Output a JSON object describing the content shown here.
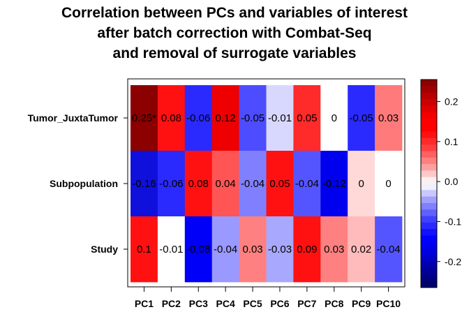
{
  "title_lines": [
    "Correlation between PCs and variables of interest",
    "after batch correction with Combat-Seq",
    "and removal of surrogate variables"
  ],
  "chart_data": {
    "type": "heatmap",
    "x_categories": [
      "PC1",
      "PC2",
      "PC3",
      "PC4",
      "PC5",
      "PC6",
      "PC7",
      "PC8",
      "PC9",
      "PC10"
    ],
    "y_categories": [
      "Tumor_JuxtaTumor",
      "Subpopulation",
      "Study"
    ],
    "values": [
      [
        0.25,
        0.08,
        -0.06,
        0.12,
        -0.05,
        -0.01,
        0.05,
        0,
        -0.05,
        0.03
      ],
      [
        -0.16,
        -0.06,
        0.08,
        0.04,
        -0.04,
        0.05,
        -0.04,
        -0.12,
        0,
        0
      ],
      [
        0.1,
        -0.01,
        -0.08,
        -0.04,
        0.03,
        -0.03,
        0.09,
        0.03,
        0.02,
        -0.04
      ]
    ],
    "cell_labels": [
      [
        "0.25*",
        "0.08",
        "-0.06",
        "0.12",
        "-0.05",
        "-0.01",
        "0.05",
        "0",
        "-0.05",
        "0.03"
      ],
      [
        "-0.16",
        "-0.06",
        "0.08",
        "0.04",
        "-0.04",
        "0.05",
        "-0.04",
        "-0.12",
        "0",
        "0"
      ],
      [
        "0.1",
        "-0.01",
        "-0.08",
        "-0.04",
        "0.03",
        "-0.03",
        "0.09",
        "0.03",
        "0.02",
        "-0.04"
      ]
    ],
    "cell_colors": [
      [
        "#8B0000",
        "#FF1111",
        "#2A2AFF",
        "#EE0000",
        "#4D4DFF",
        "#D8D8FF",
        "#FF2A2A",
        "#FFFFFF",
        "#2A2AFF",
        "#FF7A7A"
      ],
      [
        "#1010DD",
        "#2A2AFF",
        "#FF1111",
        "#FF5555",
        "#8080FF",
        "#FF1111",
        "#5555FF",
        "#0000EE",
        "#FFD8D8",
        "#FFFFFF"
      ],
      [
        "#FF1111",
        "#FFFFFF",
        "#0000F8",
        "#9999FF",
        "#FF8080",
        "#A8A8FF",
        "#FF1111",
        "#FF8080",
        "#FFBBBB",
        "#5555FF"
      ]
    ],
    "colorbar": {
      "ticks": [
        "0.2",
        "0.1",
        "0.0",
        "-0.1",
        "-0.2"
      ],
      "tick_values": [
        0.2,
        0.1,
        0.0,
        -0.1,
        -0.2
      ],
      "range": [
        -0.265,
        0.255
      ],
      "colors_top_to_bottom": [
        "#8B0000",
        "#A20000",
        "#B80000",
        "#CD0000",
        "#E00000",
        "#F20000",
        "#FF0000",
        "#FF0000",
        "#FF1111",
        "#FF2A2A",
        "#FF4040",
        "#FF6060",
        "#FF8080",
        "#FFA0A0",
        "#FFC8C8",
        "#FFF0F0",
        "#F0F0FF",
        "#C8C8FF",
        "#A0A0FF",
        "#8080FF",
        "#6060FF",
        "#4040FF",
        "#2A2AFF",
        "#1111FF",
        "#0000FF",
        "#0000F0",
        "#0000DD",
        "#0000C8",
        "#0000B0",
        "#000098",
        "#000080",
        "#00006A"
      ]
    }
  }
}
